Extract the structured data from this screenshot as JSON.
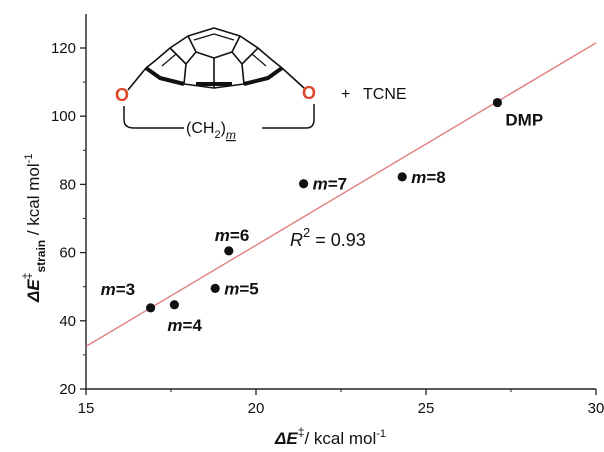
{
  "chart_data": {
    "type": "scatter",
    "xlabel": {
      "main": "ΔE",
      "sup": "‡",
      "rest": "/ kcal mol",
      "exp": "-1"
    },
    "ylabel": {
      "main": "ΔE",
      "sup": "‡",
      "sub": "strain",
      "rest": " / kcal mol",
      "exp": "-1"
    },
    "xlim": [
      15,
      30
    ],
    "ylim": [
      20,
      130
    ],
    "xticks": [
      15,
      20,
      25,
      30
    ],
    "yticks": [
      20,
      40,
      60,
      80,
      100,
      120
    ],
    "xtick_labels": [
      "15",
      "20",
      "25",
      "30"
    ],
    "ytick_labels": [
      "20",
      "40",
      "60",
      "80",
      "100",
      "120"
    ],
    "grid": false,
    "points": [
      {
        "label": "m=3",
        "x": 16.9,
        "y": 43.8,
        "italic": "m",
        "rest": "=3"
      },
      {
        "label": "m=4",
        "x": 17.6,
        "y": 44.7,
        "italic": "m",
        "rest": "=4"
      },
      {
        "label": "m=5",
        "x": 18.8,
        "y": 49.5,
        "italic": "m",
        "rest": "=5"
      },
      {
        "label": "m=6",
        "x": 19.2,
        "y": 60.5,
        "italic": "m",
        "rest": "=6"
      },
      {
        "label": "m=7",
        "x": 21.4,
        "y": 80.2,
        "italic": "m",
        "rest": "=7"
      },
      {
        "label": "m=8",
        "x": 24.3,
        "y": 82.2,
        "italic": "m",
        "rest": "=8"
      },
      {
        "label": "DMP",
        "x": 27.1,
        "y": 104.0,
        "italic": "",
        "rest": "DMP"
      }
    ],
    "fit_line": {
      "x": [
        15,
        30
      ],
      "y": [
        32.5,
        121.5
      ],
      "color": "#e08080"
    },
    "annotation": {
      "r_text": "R",
      "sup": "2",
      "rest": " = 0.93"
    },
    "colors": {
      "point": "#111111",
      "fit": "#e08080",
      "axis": "#222222"
    }
  },
  "molecule": {
    "o_left": "O",
    "o_right": "O",
    "plus": "+",
    "reagent": "TCNE",
    "chain_open": "(CH",
    "chain_sub": "2",
    "chain_close": ")",
    "chain_sub_m": "m"
  }
}
